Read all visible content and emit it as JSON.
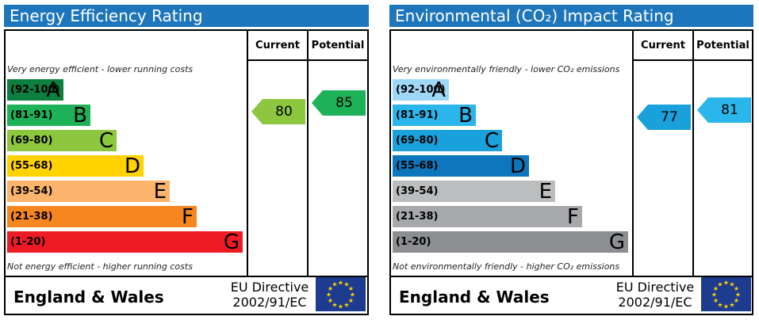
{
  "chart_data": [
    {
      "type": "bar",
      "title": "Energy Efficiency Rating",
      "columns": [
        "Current",
        "Potential"
      ],
      "top_note": "Very energy efficient - lower running costs",
      "bottom_note": "Not energy efficient - higher running costs",
      "bands": [
        {
          "range": "(92-100)",
          "letter": "A",
          "color": "#0c8040",
          "length": 1
        },
        {
          "range": "(81-91)",
          "letter": "B",
          "color": "#1eb258",
          "length": 2
        },
        {
          "range": "(69-80)",
          "letter": "C",
          "color": "#8dc63f",
          "length": 3
        },
        {
          "range": "(55-68)",
          "letter": "D",
          "color": "#ffd200",
          "length": 4
        },
        {
          "range": "(39-54)",
          "letter": "E",
          "color": "#fcb46c",
          "length": 5
        },
        {
          "range": "(21-38)",
          "letter": "F",
          "color": "#f6861f",
          "length": 6
        },
        {
          "range": "(1-20)",
          "letter": "G",
          "color": "#ed1c24",
          "length": 7
        }
      ],
      "current": {
        "value": 80,
        "band": "C",
        "color": "#8dc63f"
      },
      "potential": {
        "value": 85,
        "band": "B",
        "color": "#1eb258"
      },
      "footer": {
        "region": "England & Wales",
        "directive_line1": "EU Directive",
        "directive_line2": "2002/91/EC"
      }
    },
    {
      "type": "bar",
      "title": "Environmental (CO₂) Impact Rating",
      "columns": [
        "Current",
        "Potential"
      ],
      "top_note": "Very environmentally friendly - lower CO₂ emissions",
      "bottom_note": "Not environmentally friendly - higher CO₂ emissions",
      "bands": [
        {
          "range": "(92-100)",
          "letter": "A",
          "color": "#9fd8f6",
          "length": 1
        },
        {
          "range": "(81-91)",
          "letter": "B",
          "color": "#2bb6eb",
          "length": 2
        },
        {
          "range": "(69-80)",
          "letter": "C",
          "color": "#1aa0db",
          "length": 3
        },
        {
          "range": "(55-68)",
          "letter": "D",
          "color": "#0e76bc",
          "length": 4
        },
        {
          "range": "(39-54)",
          "letter": "E",
          "color": "#bbbdbf",
          "length": 5
        },
        {
          "range": "(21-38)",
          "letter": "F",
          "color": "#a6a8ab",
          "length": 6
        },
        {
          "range": "(1-20)",
          "letter": "G",
          "color": "#8c8e91",
          "length": 7
        }
      ],
      "current": {
        "value": 77,
        "band": "C",
        "color": "#1aa0db"
      },
      "potential": {
        "value": 81,
        "band": "B",
        "color": "#2bb6eb"
      },
      "footer": {
        "region": "England & Wales",
        "directive_line1": "EU Directive",
        "directive_line2": "2002/91/EC"
      }
    }
  ],
  "theme": {
    "header_color": "#1d76bb",
    "flag_color": "#1e3c8f",
    "star_color": "#ffd200"
  }
}
